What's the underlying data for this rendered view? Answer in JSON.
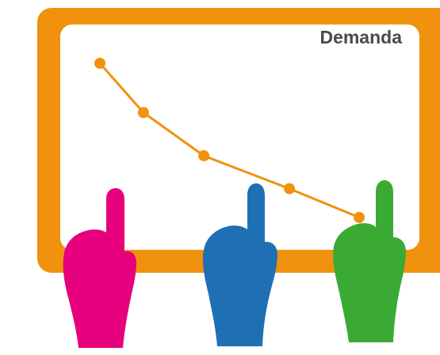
{
  "board": {
    "title": "Demanda",
    "frame_color": "#f0920e",
    "panel_color": "#ffffff"
  },
  "chart_data": {
    "type": "line",
    "title": "Demanda",
    "xlabel": "",
    "ylabel": "",
    "grid": false,
    "series": [
      {
        "values": [
          10,
          7.6,
          5.5,
          3.9,
          2.5
        ]
      }
    ],
    "line_color": "#f0920e"
  },
  "hands": [
    {
      "name": "pink-pointing-hand",
      "color": "#e6007e"
    },
    {
      "name": "blue-pointing-hand",
      "color": "#1f6fb4"
    },
    {
      "name": "green-pointing-hand",
      "color": "#3aaa35"
    }
  ],
  "colors": {
    "text": "#4a4a4a",
    "background": "#ffffff"
  }
}
